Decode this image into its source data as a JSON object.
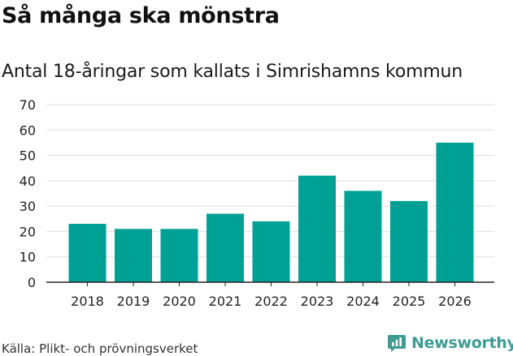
{
  "header": {
    "title": "Så många ska mönstra",
    "subtitle": "Antal 18-åringar som kallats i Simrishamns kommun"
  },
  "footer": {
    "source": "Källa: Plikt- och prövningsverket",
    "brand": "Newsworthy"
  },
  "colors": {
    "bar": "#00a095",
    "grid": "#dddddd",
    "axis": "#222222",
    "brand": "#3e9c92"
  },
  "icons": {
    "brand_logo": "newsworthy-logo-icon"
  },
  "chart_data": {
    "type": "bar",
    "title": "Så många ska mönstra",
    "subtitle": "Antal 18-åringar som kallats i Simrishamns kommun",
    "xlabel": "",
    "ylabel": "",
    "categories": [
      "2018",
      "2019",
      "2020",
      "2021",
      "2022",
      "2023",
      "2024",
      "2025",
      "2026"
    ],
    "values": [
      23,
      21,
      21,
      27,
      24,
      42,
      36,
      32,
      55
    ],
    "ylim": [
      0,
      70
    ],
    "yticks": [
      "0",
      "10",
      "20",
      "30",
      "40",
      "50",
      "60",
      "70"
    ],
    "grid": true,
    "legend": "none"
  }
}
